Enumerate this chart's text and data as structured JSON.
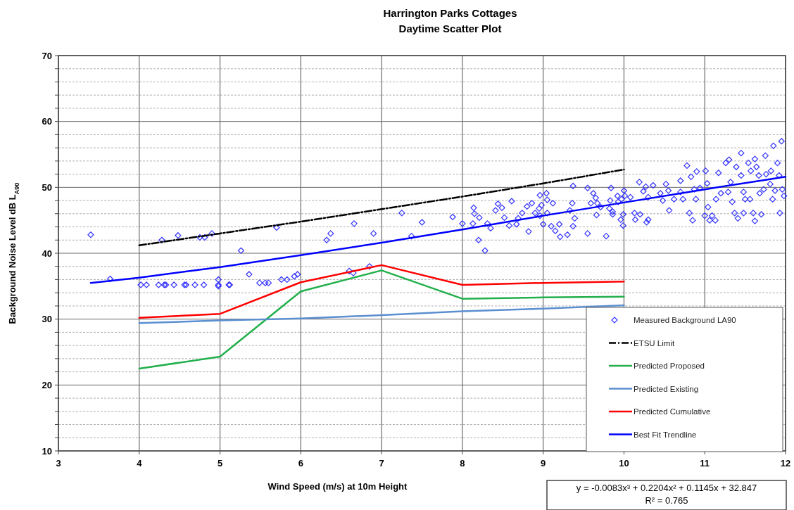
{
  "chart_data": {
    "type": "scatter",
    "title": "Harrington Parks Cottages",
    "subtitle": "Daytime Scatter Plot",
    "xlabel": "Wind Speed (m/s) at 10m Height",
    "ylabel": "Background Noise Level dB L$_{A90}$",
    "xlim": [
      3,
      12
    ],
    "xticks": [
      3,
      4,
      5,
      6,
      7,
      8,
      9,
      10,
      11,
      12
    ],
    "ylim": [
      10,
      70
    ],
    "yticks": [
      10,
      {
        "value": 12,
        "label": null
      },
      {
        "value": 14,
        "label": null
      },
      {
        "value": 16,
        "label": null
      },
      {
        "value": 18,
        "label": null
      },
      20,
      {
        "value": 22,
        "label": null
      },
      {
        "value": 24,
        "label": null
      },
      {
        "value": 26,
        "label": null
      },
      {
        "value": 28,
        "label": null
      },
      30,
      {
        "value": 32,
        "label": null
      },
      {
        "value": 34,
        "label": null
      },
      {
        "value": 36,
        "label": null
      },
      {
        "value": 38,
        "label": null
      },
      40,
      {
        "value": 42,
        "label": null
      },
      {
        "value": 44,
        "label": null
      },
      {
        "value": 46,
        "label": null
      },
      {
        "value": 48,
        "label": null
      },
      50,
      {
        "value": 52,
        "label": null
      },
      {
        "value": 54,
        "label": null
      },
      {
        "value": 56,
        "label": null
      },
      {
        "value": 58,
        "label": null
      },
      60,
      {
        "value": 62,
        "label": null
      },
      {
        "value": 64,
        "label": null
      },
      {
        "value": 66,
        "label": null
      },
      {
        "value": 68,
        "label": null
      },
      70
    ],
    "grid": true,
    "legend": "bottom right",
    "annotations": [
      "y = -0.0083x³ + 0.2204x² + 0.1145x + 32.847",
      "R² = 0.765"
    ],
    "series": [
      {
        "name": "Measured Background LA90",
        "marker": "diamond",
        "color": "#3333ff",
        "x": [
          3.4,
          3.64,
          4.02,
          4.09,
          4.24,
          4.31,
          4.33,
          4.43,
          4.56,
          4.58,
          4.69,
          4.8,
          4.98,
          5.11,
          5.12,
          4.28,
          4.48,
          4.75,
          4.81,
          4.9,
          4.98,
          4.98,
          5.26,
          5.36,
          5.49,
          5.56,
          5.6,
          5.7,
          5.76,
          5.83,
          5.92,
          5.96,
          6.32,
          6.37,
          6.6,
          6.65,
          6.66,
          6.85,
          6.9,
          7.25,
          7.5,
          7.37,
          7.88,
          8.0,
          8.14,
          8.15,
          8.13,
          8.21,
          8.2,
          8.28,
          8.31,
          8.35,
          8.41,
          8.44,
          8.49,
          8.52,
          8.58,
          8.61,
          8.67,
          8.69,
          8.74,
          8.82,
          8.8,
          8.86,
          8.9,
          8.95,
          8.96,
          8.98,
          8.96,
          9.04,
          9.0,
          9.05,
          9.05,
          9.12,
          9.1,
          9.15,
          9.21,
          9.2,
          9.3,
          9.33,
          9.36,
          9.37,
          9.39,
          9.37,
          9.55,
          9.55,
          9.62,
          9.65,
          9.67,
          9.66,
          9.59,
          9.71,
          9.78,
          9.84,
          9.83,
          9.82,
          9.86,
          9.86,
          9.92,
          9.93,
          9.97,
          10.0,
          10.01,
          9.99,
          9.96,
          9.99,
          10.08,
          10.13,
          10.14,
          10.19,
          10.2,
          10.24,
          10.27,
          10.28,
          10.3,
          10.3,
          10.36,
          10.45,
          10.48,
          10.52,
          10.55,
          10.56,
          10.62,
          10.7,
          10.7,
          10.73,
          10.78,
          10.81,
          10.83,
          10.85,
          10.87,
          10.89,
          10.9,
          10.94,
          11.0,
          11.01,
          11.03,
          11.04,
          11.06,
          11.09,
          11.13,
          11.14,
          11.17,
          11.2,
          11.26,
          11.29,
          11.32,
          11.34,
          11.37,
          11.39,
          11.41,
          11.45,
          11.48,
          11.48,
          11.5,
          11.54,
          11.56,
          11.57,
          11.6,
          11.62,
          11.64,
          11.67,
          11.68,
          11.7,
          11.73,
          11.76,
          11.81,
          11.82,
          11.84,
          11.87,
          11.9,
          11.92,
          11.93,
          11.96,
          11.98,
          11.3,
          11.45,
          11.62,
          11.75,
          11.85,
          11.95
        ],
        "values": [
          42.8,
          36.1,
          35.2,
          35.2,
          35.2,
          35.2,
          35.2,
          35.2,
          35.2,
          35.2,
          35.2,
          35.2,
          35.2,
          35.2,
          35.2,
          42.0,
          42.7,
          42.4,
          42.4,
          43.0,
          36.0,
          35.0,
          40.4,
          36.8,
          35.5,
          35.5,
          35.5,
          43.9,
          36.0,
          36.0,
          36.5,
          36.8,
          42.0,
          43.0,
          37.3,
          37.0,
          44.5,
          38.0,
          43.0,
          46.1,
          44.7,
          42.6,
          45.5,
          44.5,
          46.9,
          46.0,
          44.5,
          45.4,
          42.0,
          40.4,
          44.5,
          43.8,
          46.5,
          47.5,
          46.9,
          45.4,
          44.2,
          47.9,
          44.4,
          45.3,
          46.1,
          43.3,
          47.1,
          47.6,
          46.1,
          46.8,
          45.7,
          47.3,
          48.8,
          49.1,
          44.4,
          46.1,
          48.1,
          47.6,
          44.1,
          43.4,
          42.5,
          44.4,
          42.8,
          46.5,
          47.6,
          44.1,
          45.3,
          50.2,
          49.9,
          43.0,
          49.1,
          48.4,
          47.6,
          45.8,
          47.6,
          47.0,
          42.6,
          49.9,
          48.0,
          46.8,
          45.9,
          46.3,
          48.7,
          47.8,
          48.2,
          49.5,
          48.7,
          45.9,
          45.1,
          44.2,
          48.5,
          46.1,
          45.1,
          50.8,
          45.9,
          49.4,
          50.1,
          44.7,
          45.1,
          48.5,
          50.3,
          49.1,
          48.0,
          50.5,
          49.5,
          46.5,
          48.2,
          51.0,
          49.3,
          48.2,
          53.3,
          46.1,
          51.6,
          45.0,
          49.7,
          48.2,
          52.4,
          49.9,
          45.7,
          52.5,
          50.6,
          47.0,
          45.0,
          45.7,
          45.0,
          48.2,
          52.2,
          49.1,
          53.7,
          49.3,
          50.8,
          47.8,
          46.1,
          53.1,
          45.3,
          51.8,
          49.3,
          46.1,
          48.2,
          53.7,
          48.2,
          52.5,
          46.1,
          44.9,
          53.1,
          51.8,
          49.1,
          45.9,
          49.7,
          52.0,
          50.5,
          52.5,
          48.2,
          49.5,
          53.7,
          51.8,
          46.1,
          49.7,
          48.7,
          54.2,
          55.2,
          54.3,
          54.8,
          56.3,
          57.0
        ]
      },
      {
        "name": "ETSU Limit",
        "type": "line",
        "marker": "none",
        "line_style": "dashed",
        "color": "#000000",
        "x": [
          4,
          5,
          6,
          7,
          8,
          9,
          10
        ],
        "values": [
          41.2,
          43.0,
          44.8,
          46.7,
          48.6,
          50.6,
          52.7
        ]
      },
      {
        "name": "Predicted Proposed",
        "type": "line",
        "marker": "none",
        "line_style": "solid",
        "color": "#22b04c",
        "x": [
          4,
          5,
          6,
          7,
          8,
          9,
          10
        ],
        "values": [
          22.5,
          24.3,
          34.2,
          37.4,
          33.1,
          33.3,
          33.4
        ]
      },
      {
        "name": "Predicted Existing",
        "type": "line",
        "marker": "none",
        "line_style": "solid",
        "color": "#5b8fd0",
        "x": [
          4,
          5,
          6,
          7,
          8,
          9,
          10
        ],
        "values": [
          29.4,
          29.8,
          30.1,
          30.6,
          31.2,
          31.6,
          32.1
        ]
      },
      {
        "name": "Predicted Cumulative",
        "type": "line",
        "marker": "none",
        "line_style": "solid",
        "color": "#ff0000",
        "x": [
          4,
          5,
          6,
          7,
          8,
          9,
          10
        ],
        "values": [
          30.2,
          30.8,
          35.6,
          38.2,
          35.2,
          35.5,
          35.7
        ]
      },
      {
        "name": "Best Fit Trendline",
        "type": "line",
        "marker": "none",
        "line_style": "solid",
        "color": "#0000ff",
        "x": [
          3.4,
          4,
          5,
          6,
          7,
          8,
          9,
          10,
          11,
          12
        ],
        "values": [
          35.5,
          36.3,
          37.9,
          39.7,
          41.6,
          43.6,
          45.7,
          47.7,
          49.7,
          51.6
        ]
      }
    ]
  }
}
